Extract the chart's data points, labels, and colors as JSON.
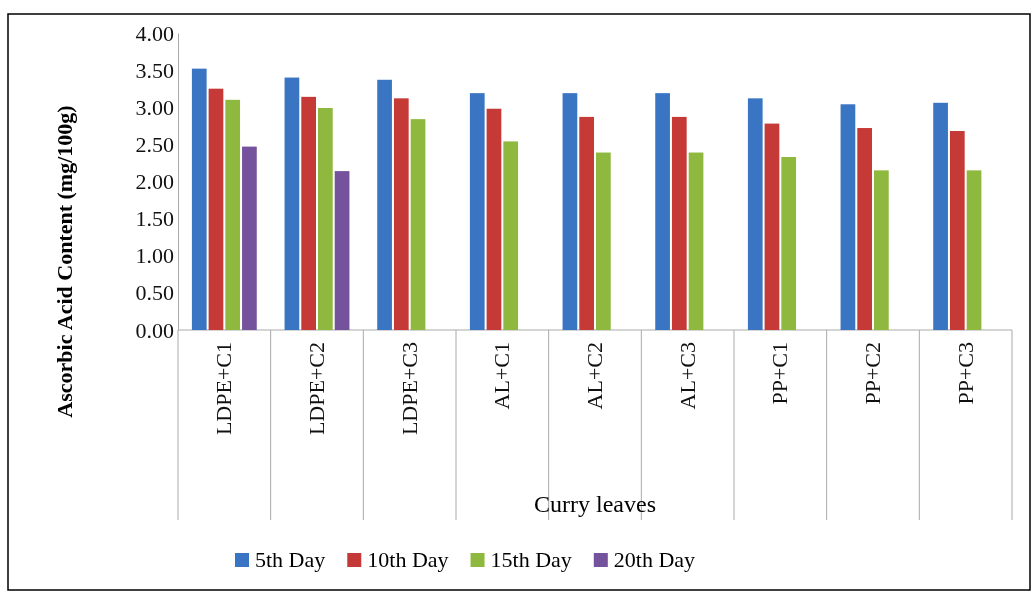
{
  "chart_data": {
    "type": "bar",
    "xlabel": "Curry leaves",
    "ylabel": "Ascorbic Acid Content (mg/100g)",
    "categories": [
      "LDPE+C1",
      "LDPE+C2",
      "LDPE+C3",
      "AL+C1",
      "AL+C2",
      "AL+C3",
      "PP+C1",
      "PP+C2",
      "PP+C3"
    ],
    "series": [
      {
        "name": "5th Day",
        "color": "#3a75c4",
        "values": [
          3.52,
          3.4,
          3.37,
          3.19,
          3.19,
          3.19,
          3.12,
          3.04,
          3.06
        ]
      },
      {
        "name": "10th Day",
        "color": "#c53a36",
        "values": [
          3.25,
          3.14,
          3.12,
          2.98,
          2.87,
          2.87,
          2.78,
          2.72,
          2.68
        ]
      },
      {
        "name": "15th Day",
        "color": "#8fb83f",
        "values": [
          3.1,
          2.99,
          2.84,
          2.54,
          2.39,
          2.39,
          2.33,
          2.15,
          2.15
        ]
      },
      {
        "name": "20th Day",
        "color": "#74529c",
        "values": [
          2.47,
          2.14,
          null,
          null,
          null,
          null,
          null,
          null,
          null
        ]
      }
    ],
    "ylim": [
      0,
      4
    ],
    "yticks": [
      {
        "value": 0,
        "label": "0.00"
      },
      {
        "value": 0.5,
        "label": "0.50"
      },
      {
        "value": 1,
        "label": "1.00"
      },
      {
        "value": 1.5,
        "label": "1.50"
      },
      {
        "value": 2,
        "label": "2.00"
      },
      {
        "value": 2.5,
        "label": "2.50"
      },
      {
        "value": 3,
        "label": "3.00"
      },
      {
        "value": 3.5,
        "label": "3.50"
      },
      {
        "value": 4,
        "label": "4.00"
      }
    ],
    "grid": false,
    "legend": "bottom"
  }
}
